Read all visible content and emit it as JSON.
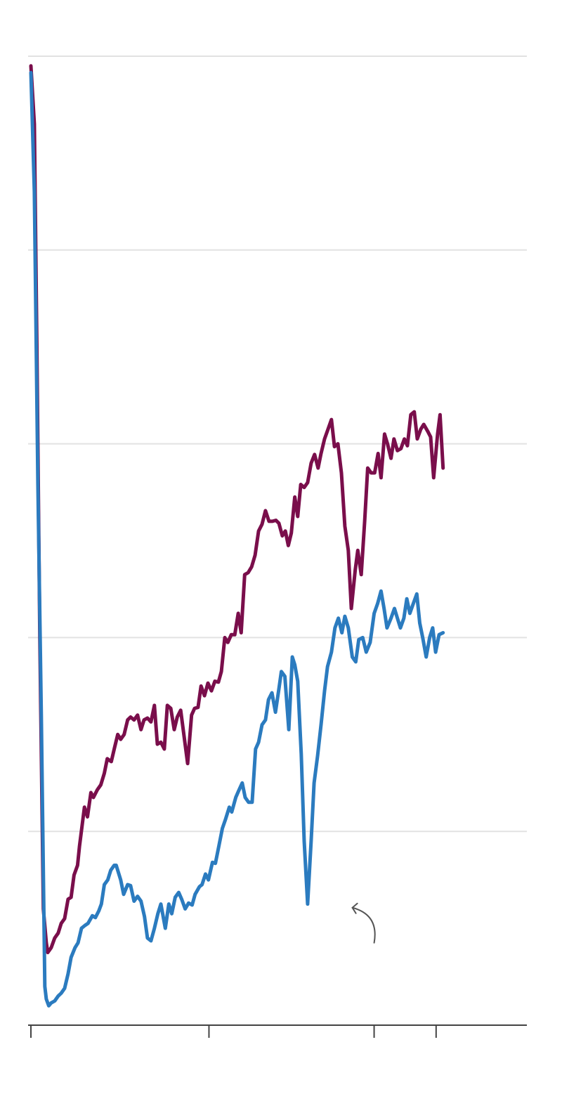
{
  "chart_data": {
    "type": "line",
    "title": "",
    "xlabel": "",
    "ylabel": "",
    "x_tick_labels": [],
    "y_tick_labels": [],
    "grid": true,
    "ylim": [
      0,
      100
    ],
    "xlim": [
      0,
      100
    ],
    "x_ticks": [
      0,
      35.9,
      69.2,
      81.7
    ],
    "y_grid": [
      0,
      20,
      40,
      60,
      80,
      100
    ],
    "colors": {
      "series_a": "#7a0e4b",
      "series_b": "#2b7bbf",
      "grid": "#e2e2e2",
      "axis": "#444444",
      "annotation": "#555555"
    },
    "series": [
      {
        "color": "#7a0e4b",
        "points": [
          [
            0,
            99
          ],
          [
            0.7,
            93
          ],
          [
            1.2,
            70
          ],
          [
            1.8,
            40
          ],
          [
            2.5,
            12
          ],
          [
            3.1,
            8.5
          ],
          [
            3.4,
            7.5
          ],
          [
            4.1,
            8
          ],
          [
            4.8,
            9
          ],
          [
            5.5,
            9.5
          ],
          [
            6.1,
            10.5
          ],
          [
            6.8,
            11
          ],
          [
            7.5,
            13
          ],
          [
            8.1,
            13.2
          ],
          [
            8.7,
            15.5
          ],
          [
            9.4,
            16.5
          ],
          [
            9.8,
            18.5
          ],
          [
            10.8,
            22.5
          ],
          [
            11.4,
            21.5
          ],
          [
            12.1,
            24
          ],
          [
            12.6,
            23.5
          ],
          [
            13.4,
            24.3
          ],
          [
            14.1,
            24.8
          ],
          [
            14.8,
            26
          ],
          [
            15.4,
            27.5
          ],
          [
            16.2,
            27.2
          ],
          [
            16.8,
            28.5
          ],
          [
            17.5,
            30
          ],
          [
            18.1,
            29.5
          ],
          [
            18.8,
            30
          ],
          [
            19.5,
            31.5
          ],
          [
            20.1,
            31.8
          ],
          [
            20.8,
            31.5
          ],
          [
            21.5,
            32
          ],
          [
            22.2,
            30.5
          ],
          [
            22.8,
            31.5
          ],
          [
            23.5,
            31.7
          ],
          [
            24.2,
            31.3
          ],
          [
            24.9,
            33
          ],
          [
            25.5,
            29
          ],
          [
            26.2,
            29.2
          ],
          [
            26.9,
            28.5
          ],
          [
            27.5,
            33
          ],
          [
            28.2,
            32.7
          ],
          [
            28.9,
            30.5
          ],
          [
            29.5,
            31.8
          ],
          [
            30.2,
            32.5
          ],
          [
            31.6,
            27
          ],
          [
            32.4,
            32
          ],
          [
            33,
            32.7
          ],
          [
            33.7,
            32.8
          ],
          [
            34.3,
            35
          ],
          [
            35,
            34
          ],
          [
            35.7,
            35.3
          ],
          [
            36.4,
            34.5
          ],
          [
            37.1,
            35.5
          ],
          [
            37.8,
            35.4
          ],
          [
            38.4,
            36.5
          ],
          [
            39.1,
            40
          ],
          [
            39.7,
            39.5
          ],
          [
            40.4,
            40.3
          ],
          [
            41.1,
            40.3
          ],
          [
            41.8,
            42.5
          ],
          [
            42.4,
            40.5
          ],
          [
            43.1,
            46.5
          ],
          [
            43.8,
            46.7
          ],
          [
            44.5,
            47.3
          ],
          [
            45.2,
            48.5
          ],
          [
            45.9,
            51
          ],
          [
            46.6,
            51.7
          ],
          [
            47.3,
            53.1
          ],
          [
            48,
            52
          ],
          [
            48.7,
            52
          ],
          [
            49.4,
            52.1
          ],
          [
            50,
            51.8
          ],
          [
            50.7,
            50.5
          ],
          [
            51.3,
            51
          ],
          [
            51.9,
            49.5
          ],
          [
            52.5,
            50.8
          ],
          [
            53.2,
            54.5
          ],
          [
            53.8,
            52.5
          ],
          [
            54.4,
            55.8
          ],
          [
            55.1,
            55.5
          ],
          [
            55.8,
            56
          ],
          [
            56.5,
            58
          ],
          [
            57.2,
            58.9
          ],
          [
            57.9,
            57.5
          ],
          [
            58.5,
            59
          ],
          [
            59.2,
            60.5
          ],
          [
            59.9,
            61.5
          ],
          [
            60.6,
            62.5
          ],
          [
            61.2,
            59.7
          ],
          [
            61.9,
            60
          ],
          [
            62.6,
            57
          ],
          [
            63.3,
            51.5
          ],
          [
            64,
            49
          ],
          [
            64.6,
            43
          ],
          [
            65.4,
            47
          ],
          [
            65.9,
            49
          ],
          [
            66.6,
            46.5
          ],
          [
            67.3,
            52
          ],
          [
            67.9,
            57.5
          ],
          [
            68.6,
            57
          ],
          [
            69.3,
            57
          ],
          [
            70,
            59
          ],
          [
            70.6,
            56.5
          ],
          [
            71.3,
            61
          ],
          [
            71.9,
            60
          ],
          [
            72.6,
            58.5
          ],
          [
            73.2,
            60.5
          ],
          [
            73.9,
            59.3
          ],
          [
            74.6,
            59.5
          ],
          [
            75.3,
            60.5
          ],
          [
            75.9,
            59.8
          ],
          [
            76.6,
            63
          ],
          [
            77.3,
            63.3
          ],
          [
            77.9,
            60.5
          ],
          [
            78.6,
            61.5
          ],
          [
            79.2,
            62
          ],
          [
            80,
            61.3
          ],
          [
            80.6,
            60.7
          ],
          [
            81.2,
            56.5
          ],
          [
            82,
            61
          ],
          [
            82.5,
            63
          ],
          [
            83.1,
            57.5
          ]
        ]
      },
      {
        "color": "#2b7bbf",
        "points": [
          [
            0,
            98.3
          ],
          [
            0.7,
            86
          ],
          [
            1.4,
            56
          ],
          [
            2.1,
            32
          ],
          [
            2.8,
            4
          ],
          [
            3.1,
            2.7
          ],
          [
            3.6,
            2
          ],
          [
            4.1,
            2.3
          ],
          [
            4.8,
            2.5
          ],
          [
            5.5,
            3
          ],
          [
            6.1,
            3.3
          ],
          [
            6.8,
            3.8
          ],
          [
            7.5,
            5.3
          ],
          [
            8.1,
            7
          ],
          [
            8.9,
            8
          ],
          [
            9.5,
            8.5
          ],
          [
            10.2,
            10
          ],
          [
            10.9,
            10.3
          ],
          [
            11.5,
            10.5
          ],
          [
            12.4,
            11.3
          ],
          [
            13,
            11.1
          ],
          [
            13.7,
            11.8
          ],
          [
            14.2,
            12.5
          ],
          [
            14.8,
            14.5
          ],
          [
            15.5,
            15
          ],
          [
            16.1,
            16
          ],
          [
            16.8,
            16.5
          ],
          [
            17.2,
            16.5
          ],
          [
            18.1,
            15
          ],
          [
            18.7,
            13.5
          ],
          [
            19.5,
            14.5
          ],
          [
            20.1,
            14.4
          ],
          [
            20.8,
            12.8
          ],
          [
            21.5,
            13.3
          ],
          [
            22.2,
            12.8
          ],
          [
            22.9,
            11.2
          ],
          [
            23.5,
            9
          ],
          [
            24.2,
            8.7
          ],
          [
            24.9,
            10
          ],
          [
            25.6,
            11.5
          ],
          [
            26.2,
            12.5
          ],
          [
            27.1,
            10
          ],
          [
            27.8,
            12.5
          ],
          [
            28.4,
            11.5
          ],
          [
            29.1,
            13.2
          ],
          [
            29.8,
            13.7
          ],
          [
            30.4,
            13
          ],
          [
            31.1,
            12
          ],
          [
            31.8,
            12.6
          ],
          [
            32.5,
            12.4
          ],
          [
            33.1,
            13.5
          ],
          [
            34,
            14.3
          ],
          [
            34.5,
            14.5
          ],
          [
            35.2,
            15.6
          ],
          [
            35.8,
            15
          ],
          [
            36.6,
            16.8
          ],
          [
            37.2,
            16.7
          ],
          [
            37.9,
            18.5
          ],
          [
            38.6,
            20.3
          ],
          [
            39.2,
            21.2
          ],
          [
            40,
            22.5
          ],
          [
            40.5,
            22
          ],
          [
            41.3,
            23.5
          ],
          [
            41.9,
            24.2
          ],
          [
            42.6,
            25
          ],
          [
            43.2,
            23.5
          ],
          [
            43.9,
            23
          ],
          [
            44.6,
            23
          ],
          [
            45.3,
            28.5
          ],
          [
            45.9,
            29.2
          ],
          [
            46.6,
            31
          ],
          [
            47.3,
            31.5
          ],
          [
            47.9,
            33.6
          ],
          [
            48.6,
            34.3
          ],
          [
            49.3,
            32.3
          ],
          [
            50,
            34.7
          ],
          [
            50.5,
            36.5
          ],
          [
            51.2,
            36
          ],
          [
            52,
            30.5
          ],
          [
            52.7,
            38
          ],
          [
            53.2,
            37.2
          ],
          [
            53.8,
            35.5
          ],
          [
            54.5,
            28
          ],
          [
            55.1,
            19
          ],
          [
            55.8,
            12.5
          ],
          [
            56.5,
            19
          ],
          [
            57.1,
            25
          ],
          [
            57.8,
            27.8
          ],
          [
            58.5,
            31
          ],
          [
            59.2,
            34.5
          ],
          [
            59.8,
            37
          ],
          [
            60.6,
            38.5
          ],
          [
            61.3,
            41
          ],
          [
            62,
            42
          ],
          [
            62.7,
            40.5
          ],
          [
            63.3,
            42.2
          ],
          [
            64,
            41
          ],
          [
            64.8,
            38
          ],
          [
            65.5,
            37.5
          ],
          [
            66.1,
            39.8
          ],
          [
            66.9,
            40
          ],
          [
            67.6,
            38.5
          ],
          [
            68.4,
            39.5
          ],
          [
            69.2,
            42.5
          ],
          [
            69.9,
            43.5
          ],
          [
            70.6,
            44.8
          ],
          [
            71.2,
            43
          ],
          [
            71.8,
            41
          ],
          [
            72.6,
            42
          ],
          [
            73.3,
            43
          ],
          [
            73.9,
            42
          ],
          [
            74.5,
            41
          ],
          [
            75.2,
            42
          ],
          [
            75.8,
            44
          ],
          [
            76.4,
            42.5
          ],
          [
            77.1,
            43.5
          ],
          [
            77.8,
            44.5
          ],
          [
            78.4,
            41.5
          ],
          [
            79,
            40
          ],
          [
            79.7,
            38
          ],
          [
            80.4,
            40
          ],
          [
            81,
            41
          ],
          [
            81.6,
            38.5
          ],
          [
            82.3,
            40.3
          ],
          [
            83.1,
            40.5
          ]
        ]
      }
    ],
    "annotation": {
      "type": "arrow",
      "points_to": [
        63.4,
        12.2
      ]
    }
  }
}
